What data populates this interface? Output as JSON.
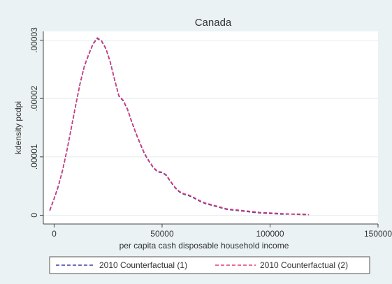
{
  "chart_data": {
    "type": "line",
    "title": "Canada",
    "xlabel": "per capita cash disposable household income",
    "ylabel": "kdensity pcdpi",
    "xlim": [
      -5000,
      150000
    ],
    "ylim": [
      -1.5e-06,
      3.15e-05
    ],
    "x_ticks": [
      0,
      50000,
      100000,
      150000
    ],
    "x_tick_labels": [
      "0",
      "50000",
      "100000",
      "150000"
    ],
    "y_ticks": [
      0,
      1e-05,
      2e-05,
      3e-05
    ],
    "y_tick_labels": [
      "0",
      ".00001",
      ".00002",
      ".00003"
    ],
    "grid": true,
    "legend_position": "bottom",
    "series": [
      {
        "name": "2010 Counterfactual (1)",
        "color": "#3b3fa5",
        "dash": "dashed",
        "x": [
          -2000,
          0,
          2000,
          4000,
          6000,
          8000,
          10000,
          12000,
          14000,
          16000,
          18000,
          20000,
          22000,
          24000,
          26000,
          28000,
          30000,
          32000,
          34000,
          36000,
          38000,
          40000,
          42000,
          44000,
          46000,
          48000,
          50000,
          52000,
          54000,
          56000,
          58000,
          60000,
          62000,
          64000,
          66000,
          68000,
          70000,
          75000,
          80000,
          85000,
          90000,
          95000,
          100000,
          105000,
          110000,
          115000,
          118000
        ],
        "y": [
          8e-07,
          2.8e-06,
          5e-06,
          7.8e-06,
          1.12e-05,
          1.5e-05,
          1.88e-05,
          2.25e-05,
          2.55e-05,
          2.75e-05,
          2.93e-05,
          3.03e-05,
          2.98e-05,
          2.85e-05,
          2.62e-05,
          2.32e-05,
          2.04e-05,
          1.96e-05,
          1.81e-05,
          1.59e-05,
          1.39e-05,
          1.21e-05,
          1.04e-05,
          9.2e-06,
          8.1e-06,
          7.4e-06,
          7.3e-06,
          6.8e-06,
          5.7e-06,
          4.7e-06,
          4e-06,
          3.6e-06,
          3.4e-06,
          3.1e-06,
          2.7e-06,
          2.3e-06,
          2e-06,
          1.5e-06,
          1e-06,
          8e-07,
          6e-07,
          4e-07,
          3e-07,
          2e-07,
          2e-07,
          1e-07,
          1e-07
        ]
      },
      {
        "name": "2010 Counterfactual (2)",
        "color": "#e03a77",
        "dash": "dashed",
        "x": [
          -2000,
          0,
          2000,
          4000,
          6000,
          8000,
          10000,
          12000,
          14000,
          16000,
          18000,
          20000,
          22000,
          24000,
          26000,
          28000,
          30000,
          32000,
          34000,
          36000,
          38000,
          40000,
          42000,
          44000,
          46000,
          48000,
          50000,
          52000,
          54000,
          56000,
          58000,
          60000,
          62000,
          64000,
          66000,
          68000,
          70000,
          75000,
          80000,
          85000,
          90000,
          95000,
          100000,
          105000,
          110000,
          115000,
          118000
        ],
        "y": [
          9e-07,
          2.9e-06,
          5.1e-06,
          7.9e-06,
          1.13e-05,
          1.51e-05,
          1.89e-05,
          2.26e-05,
          2.56e-05,
          2.76e-05,
          2.94e-05,
          3.04e-05,
          2.99e-05,
          2.86e-05,
          2.63e-05,
          2.33e-05,
          2.05e-05,
          1.97e-05,
          1.82e-05,
          1.6e-05,
          1.4e-05,
          1.22e-05,
          1.05e-05,
          9.3e-06,
          8.2e-06,
          7.5e-06,
          7.4e-06,
          6.9e-06,
          5.8e-06,
          4.8e-06,
          4.1e-06,
          3.7e-06,
          3.5e-06,
          3.2e-06,
          2.8e-06,
          2.4e-06,
          2.1e-06,
          1.6e-06,
          1.1e-06,
          9e-07,
          7e-07,
          5e-07,
          4e-07,
          3e-07,
          2e-07,
          2e-07,
          1e-07
        ]
      }
    ]
  },
  "colors": {
    "outer_background": "#eaf2f3",
    "plot_background": "#ffffff",
    "grid": "#e6eeee",
    "axis": "#444444",
    "text": "#333333"
  }
}
